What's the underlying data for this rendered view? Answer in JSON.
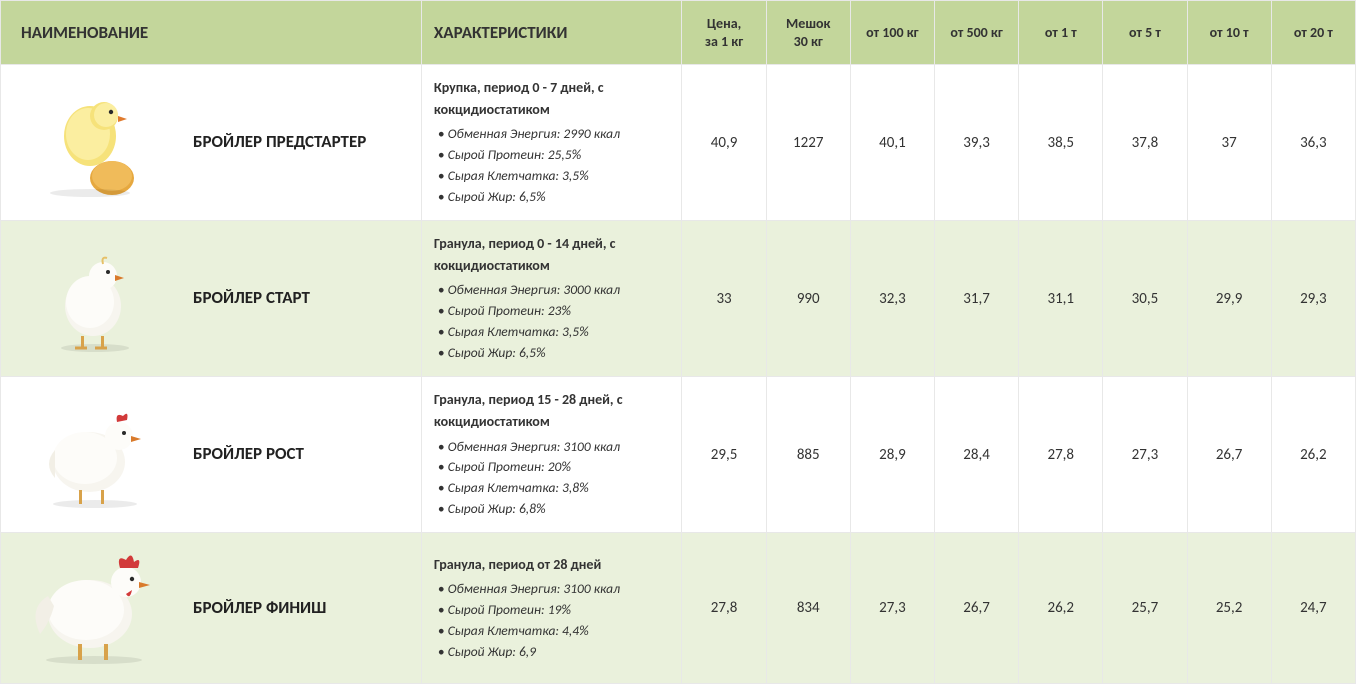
{
  "colors": {
    "header_bg": "#c3d69b",
    "row_even_bg": "#eaf1dc",
    "row_odd_bg": "#ffffff",
    "border": "#e8e8e8",
    "text": "#333333"
  },
  "columns": {
    "name": "НАИМЕНОВАНИЕ",
    "characteristics": "ХАРАКТЕРИСТИКИ",
    "prices": [
      {
        "line1": "Цена,",
        "line2": "за 1 кг"
      },
      {
        "line1": "Мешок",
        "line2": "30 кг"
      },
      {
        "line1": "от 100 кг",
        "line2": ""
      },
      {
        "line1": "от 500 кг",
        "line2": ""
      },
      {
        "line1": "от 1 т",
        "line2": ""
      },
      {
        "line1": "от 5 т",
        "line2": ""
      },
      {
        "line1": "от 10 т",
        "line2": ""
      },
      {
        "line1": "от 20 т",
        "line2": ""
      }
    ]
  },
  "rows": [
    {
      "name": "БРОЙЛЕР ПРЕДСТАРТЕР",
      "icon": "chick-egg",
      "char_title": "Крупка,  период  0 - 7 дней, с кокцидиостатиком",
      "char_items": [
        "Обменная Энергия: 2990 ккал",
        "Сырой Протеин: 25,5%",
        "Сырая Клетчатка: 3,5%",
        "Сырой Жир: 6,5%"
      ],
      "prices": [
        "40,9",
        "1227",
        "40,1",
        "39,3",
        "38,5",
        "37,8",
        "37",
        "36,3"
      ]
    },
    {
      "name": "БРОЙЛЕР СТАРТ",
      "icon": "chick-white",
      "char_title": "Гранула, период 0 - 14 дней, с кокцидиостатиком",
      "char_items": [
        "Обменная Энергия: 3000 ккал",
        "Сырой Протеин: 23%",
        "Сырая Клетчатка: 3,5%",
        "Сырой Жир: 6,5%"
      ],
      "prices": [
        "33",
        "990",
        "32,3",
        "31,7",
        "31,1",
        "30,5",
        "29,9",
        "29,3"
      ]
    },
    {
      "name": "БРОЙЛЕР РОСТ",
      "icon": "chicken-mid",
      "char_title": "Гранула, период 15 - 28 дней, с кокцидиостатиком",
      "char_items": [
        "Обменная Энергия: 3100 ккал",
        "Сырой Протеин: 20%",
        "Сырая Клетчатка: 3,8%",
        "Сырой Жир: 6,8%"
      ],
      "prices": [
        "29,5",
        "885",
        "28,9",
        "28,4",
        "27,8",
        "27,3",
        "26,7",
        "26,2"
      ]
    },
    {
      "name": "БРОЙЛЕР ФИНИШ",
      "icon": "chicken-adult",
      "char_title": "Гранула, период от 28 дней",
      "char_items": [
        "Обменная Энергия: 3100 ккал",
        "Сырой Протеин: 19%",
        "Сырая Клетчатка: 4,4%",
        "Сырой Жир: 6,9"
      ],
      "prices": [
        "27,8",
        "834",
        "27,3",
        "26,7",
        "26,2",
        "25,7",
        "25,2",
        "24,7"
      ]
    }
  ]
}
